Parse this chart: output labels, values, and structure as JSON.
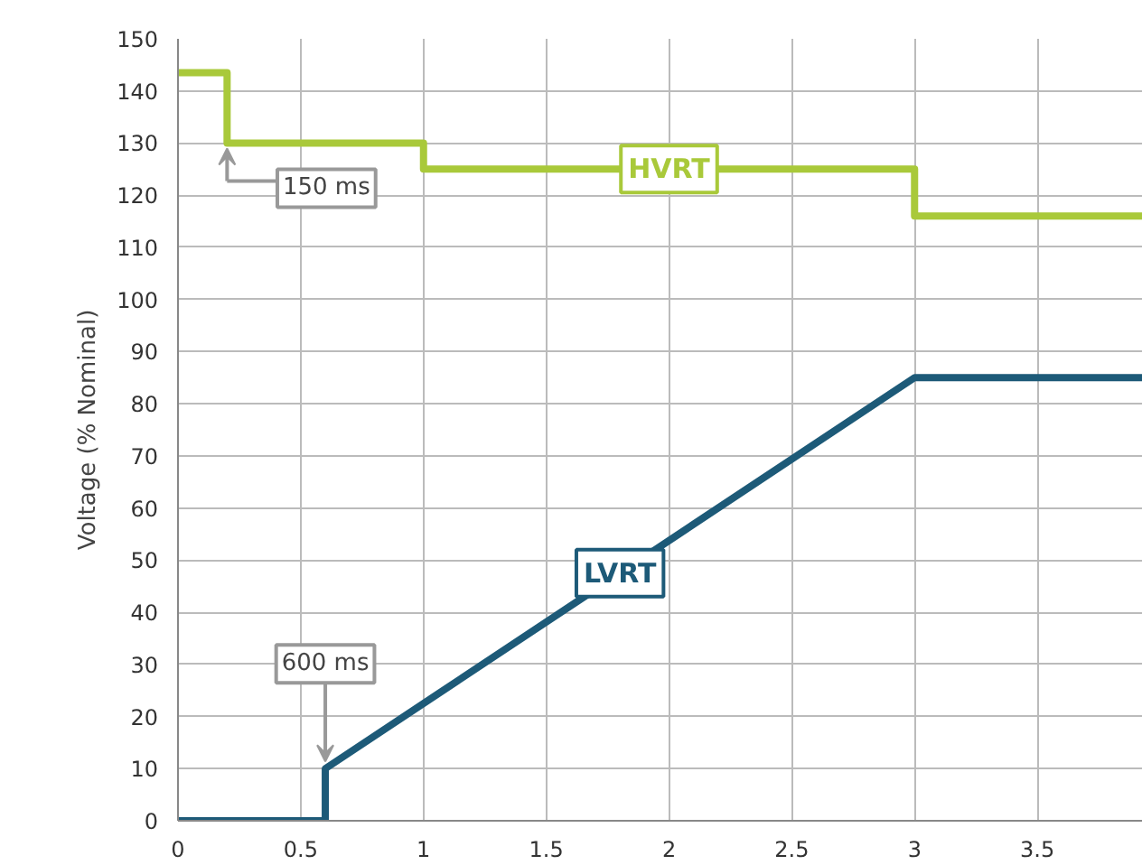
{
  "chart_data": {
    "type": "line",
    "ylabel": "Voltage (% Nominal)",
    "xlim": [
      0,
      3.93
    ],
    "ylim": [
      0,
      150
    ],
    "xticks": [
      0,
      0.5,
      1,
      1.5,
      2,
      2.5,
      3,
      3.5
    ],
    "yticks": [
      0,
      10,
      20,
      30,
      40,
      50,
      60,
      70,
      80,
      90,
      100,
      110,
      120,
      130,
      140,
      150
    ],
    "grid": true,
    "marker": "none",
    "line_style": "solid",
    "series": [
      {
        "name": "HVRT",
        "color": "#a9c93a",
        "x": [
          0,
          0.2,
          0.2,
          1,
          1,
          3,
          3,
          3.93
        ],
        "values": [
          143.5,
          143.5,
          130,
          130,
          125,
          125,
          116,
          116
        ]
      },
      {
        "name": "LVRT",
        "color": "#1d5a78",
        "x": [
          0,
          0.6,
          0.6,
          3,
          3.93
        ],
        "values": [
          0,
          0,
          10,
          85,
          85
        ]
      }
    ],
    "annotations": [
      {
        "text": "150 ms",
        "x": 0.2,
        "y": 130
      },
      {
        "text": "600 ms",
        "x": 0.6,
        "y": 10
      }
    ]
  }
}
